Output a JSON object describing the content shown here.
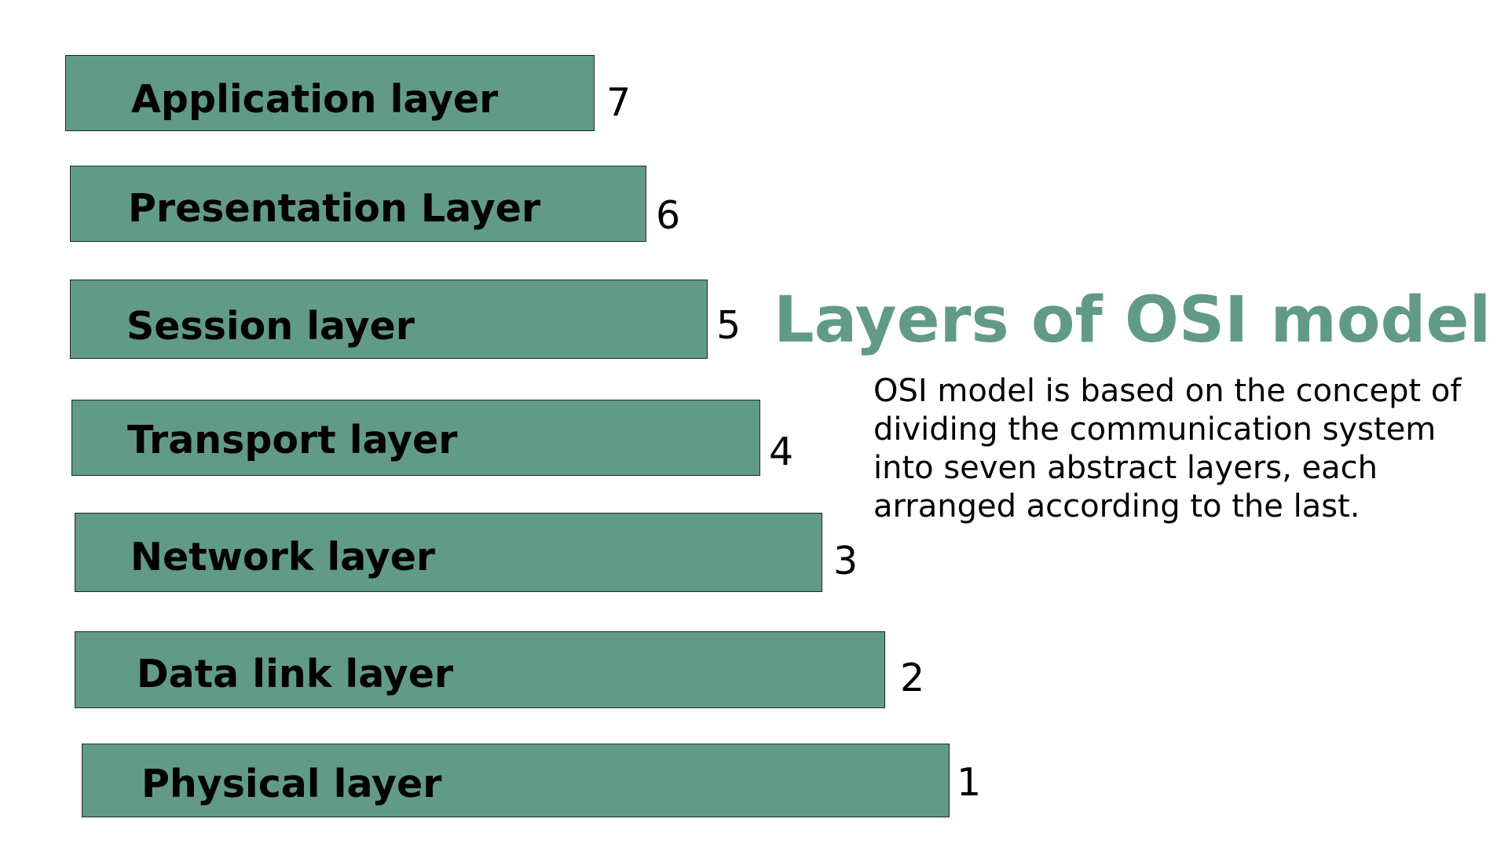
{
  "title": "Layers of OSI model",
  "description": "OSI model is based on the concept of dividing the communication system into seven abstract layers, each arranged according to the last.",
  "colors": {
    "bar_fill": "#629A88",
    "title": "#629A88"
  },
  "layers": [
    {
      "label": "Application layer",
      "number": "7"
    },
    {
      "label": "Presentation Layer",
      "number": "6"
    },
    {
      "label": "Session layer",
      "number": "5"
    },
    {
      "label": "Transport layer",
      "number": "4"
    },
    {
      "label": "Network layer",
      "number": "3"
    },
    {
      "label": "Data link layer",
      "number": "2"
    },
    {
      "label": "Physical layer",
      "number": "1"
    }
  ]
}
